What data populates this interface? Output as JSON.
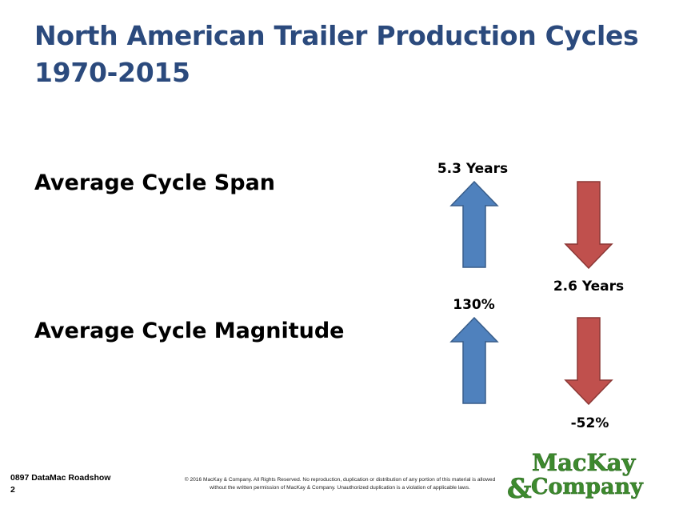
{
  "slide": {
    "title_line1": "North American Trailer Production Cycles",
    "title_line2": "1970-2015"
  },
  "rows": [
    {
      "label": "Average Cycle Span",
      "up_value": "5.3 Years",
      "down_value": "2.6 Years"
    },
    {
      "label": "Average Cycle Magnitude",
      "up_value": "130%",
      "down_value": "-52%"
    }
  ],
  "colors": {
    "up_arrow": "#4f81bd",
    "up_border": "#385d8a",
    "down_arrow": "#c0504d",
    "down_border": "#8c3836",
    "title": "#2b4a7d",
    "logo": "#3d8a2e"
  },
  "footer": {
    "left_line1": "0897 DataMac Roadshow",
    "left_line2": "2",
    "copyright_line1": "© 2016 MacKay & Company.   All Rights Reserved.   No reproduction, duplication or distribution of any portion of this material is allowed",
    "copyright_line2": "without the written permission of MacKay & Company.  Unauthorized duplication is a violation of applicable laws."
  },
  "logo": {
    "line1": "MacKay",
    "line2": "&Company"
  }
}
